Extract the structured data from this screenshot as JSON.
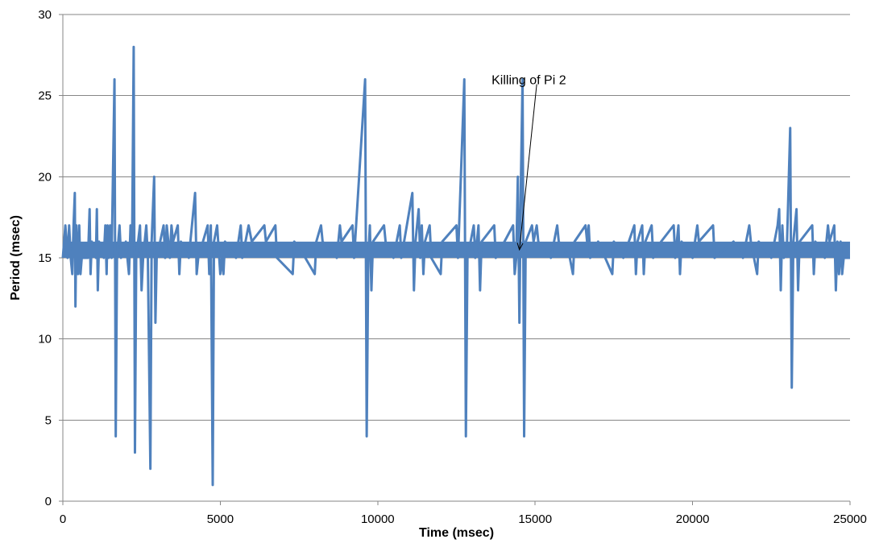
{
  "chart_data": {
    "type": "line",
    "xlabel": "Time (msec)",
    "ylabel": "Period (msec)",
    "xlim": [
      0,
      25000
    ],
    "ylim": [
      0,
      30
    ],
    "xticks": [
      0,
      5000,
      10000,
      15000,
      20000,
      25000
    ],
    "yticks": [
      0,
      5,
      10,
      15,
      20,
      25,
      30
    ],
    "grid": "horizontal",
    "legend": "none",
    "series_color": "#4f81bd",
    "baseline": [
      15,
      16
    ],
    "series": [
      {
        "points": [
          [
            0,
            15
          ],
          [
            80,
            17
          ],
          [
            150,
            15
          ],
          [
            200,
            17
          ],
          [
            250,
            15
          ],
          [
            300,
            14
          ],
          [
            340,
            17
          ],
          [
            380,
            19
          ],
          [
            400,
            12
          ],
          [
            430,
            17
          ],
          [
            480,
            14
          ],
          [
            520,
            17
          ],
          [
            560,
            14
          ],
          [
            600,
            15
          ],
          [
            800,
            15
          ],
          [
            850,
            18
          ],
          [
            880,
            14
          ],
          [
            920,
            16
          ],
          [
            1050,
            15
          ],
          [
            1080,
            18
          ],
          [
            1110,
            13
          ],
          [
            1150,
            16
          ],
          [
            1300,
            15
          ],
          [
            1350,
            17
          ],
          [
            1390,
            14
          ],
          [
            1420,
            17
          ],
          [
            1460,
            15
          ],
          [
            1500,
            17
          ],
          [
            1550,
            15
          ],
          [
            1640,
            26
          ],
          [
            1680,
            4
          ],
          [
            1720,
            15
          ],
          [
            1800,
            17
          ],
          [
            1850,
            15
          ],
          [
            2000,
            16
          ],
          [
            2100,
            14
          ],
          [
            2150,
            17
          ],
          [
            2200,
            16
          ],
          [
            2250,
            28
          ],
          [
            2290,
            3
          ],
          [
            2330,
            15
          ],
          [
            2450,
            17
          ],
          [
            2500,
            13
          ],
          [
            2550,
            15
          ],
          [
            2650,
            17
          ],
          [
            2700,
            15
          ],
          [
            2780,
            2
          ],
          [
            2820,
            16
          ],
          [
            2900,
            20
          ],
          [
            2940,
            11
          ],
          [
            2980,
            15
          ],
          [
            3200,
            17
          ],
          [
            3250,
            15
          ],
          [
            3300,
            17
          ],
          [
            3400,
            15
          ],
          [
            3450,
            17
          ],
          [
            3500,
            16
          ],
          [
            3650,
            17
          ],
          [
            3700,
            14
          ],
          [
            3750,
            16
          ],
          [
            4000,
            15
          ],
          [
            4200,
            19
          ],
          [
            4250,
            14
          ],
          [
            4300,
            15
          ],
          [
            4600,
            17
          ],
          [
            4650,
            14
          ],
          [
            4700,
            17
          ],
          [
            4760,
            1
          ],
          [
            4800,
            16
          ],
          [
            4900,
            17
          ],
          [
            5000,
            14
          ],
          [
            5050,
            15
          ],
          [
            5100,
            14
          ],
          [
            5150,
            16
          ],
          [
            5500,
            15
          ],
          [
            5650,
            17
          ],
          [
            5700,
            15
          ],
          [
            5900,
            17
          ],
          [
            6000,
            16
          ],
          [
            6400,
            17
          ],
          [
            6450,
            16
          ],
          [
            6750,
            17
          ],
          [
            6800,
            15
          ],
          [
            7300,
            14
          ],
          [
            7350,
            16
          ],
          [
            7700,
            15
          ],
          [
            8000,
            14
          ],
          [
            8050,
            16
          ],
          [
            8200,
            17
          ],
          [
            8250,
            16
          ],
          [
            8700,
            15
          ],
          [
            8800,
            17
          ],
          [
            8850,
            16
          ],
          [
            9200,
            17
          ],
          [
            9250,
            15
          ],
          [
            9600,
            26
          ],
          [
            9650,
            4
          ],
          [
            9700,
            15
          ],
          [
            9750,
            17
          ],
          [
            9800,
            13
          ],
          [
            9850,
            16
          ],
          [
            10200,
            17
          ],
          [
            10250,
            16
          ],
          [
            10500,
            15
          ],
          [
            10700,
            17
          ],
          [
            10750,
            15
          ],
          [
            11100,
            19
          ],
          [
            11150,
            13
          ],
          [
            11200,
            16
          ],
          [
            11300,
            18
          ],
          [
            11350,
            15
          ],
          [
            11400,
            17
          ],
          [
            11450,
            14
          ],
          [
            11500,
            16
          ],
          [
            11650,
            17
          ],
          [
            11700,
            15
          ],
          [
            12000,
            14
          ],
          [
            12050,
            16
          ],
          [
            12500,
            17
          ],
          [
            12550,
            15
          ],
          [
            12750,
            26
          ],
          [
            12800,
            4
          ],
          [
            12850,
            15
          ],
          [
            13050,
            17
          ],
          [
            13100,
            15
          ],
          [
            13200,
            17
          ],
          [
            13250,
            13
          ],
          [
            13300,
            16
          ],
          [
            13700,
            17
          ],
          [
            13750,
            15
          ],
          [
            14300,
            17
          ],
          [
            14350,
            14
          ],
          [
            14400,
            15
          ],
          [
            14450,
            20
          ],
          [
            14500,
            11
          ],
          [
            14550,
            20
          ],
          [
            14600,
            26
          ],
          [
            14650,
            4
          ],
          [
            14700,
            16
          ],
          [
            14900,
            17
          ],
          [
            14950,
            16
          ],
          [
            15050,
            17
          ],
          [
            15100,
            16
          ],
          [
            15500,
            15
          ],
          [
            15700,
            17
          ],
          [
            15750,
            16
          ],
          [
            16100,
            15
          ],
          [
            16200,
            14
          ],
          [
            16250,
            16
          ],
          [
            16600,
            17
          ],
          [
            16650,
            16
          ],
          [
            16700,
            17
          ],
          [
            16750,
            15
          ],
          [
            17000,
            16
          ],
          [
            17450,
            14
          ],
          [
            17500,
            16
          ],
          [
            17800,
            15
          ],
          [
            18150,
            17
          ],
          [
            18200,
            14
          ],
          [
            18250,
            16
          ],
          [
            18400,
            17
          ],
          [
            18450,
            14
          ],
          [
            18500,
            16
          ],
          [
            18700,
            17
          ],
          [
            18750,
            15
          ],
          [
            19000,
            16
          ],
          [
            19400,
            17
          ],
          [
            19450,
            15
          ],
          [
            19550,
            17
          ],
          [
            19600,
            14
          ],
          [
            19650,
            16
          ],
          [
            20000,
            15
          ],
          [
            20150,
            17
          ],
          [
            20200,
            16
          ],
          [
            20650,
            17
          ],
          [
            20700,
            15
          ],
          [
            21300,
            16
          ],
          [
            21600,
            15
          ],
          [
            21800,
            17
          ],
          [
            21850,
            16
          ],
          [
            22050,
            14
          ],
          [
            22100,
            16
          ],
          [
            22500,
            15
          ],
          [
            22700,
            17
          ],
          [
            22750,
            18
          ],
          [
            22800,
            13
          ],
          [
            22850,
            17
          ],
          [
            22900,
            15
          ],
          [
            23000,
            16
          ],
          [
            23100,
            23
          ],
          [
            23150,
            7
          ],
          [
            23200,
            16
          ],
          [
            23300,
            18
          ],
          [
            23350,
            13
          ],
          [
            23400,
            16
          ],
          [
            23800,
            17
          ],
          [
            23850,
            14
          ],
          [
            23900,
            16
          ],
          [
            24200,
            15
          ],
          [
            24300,
            17
          ],
          [
            24350,
            16
          ],
          [
            24500,
            17
          ],
          [
            24550,
            13
          ],
          [
            24600,
            16
          ],
          [
            24650,
            14
          ],
          [
            24700,
            16
          ],
          [
            24750,
            14
          ],
          [
            24800,
            15
          ],
          [
            25000,
            15
          ]
        ]
      }
    ],
    "annotation": {
      "text": "Killing of Pi 2",
      "text_at": [
        14800,
        26
      ],
      "arrow_from": [
        15050,
        25.7
      ],
      "arrow_to": [
        14500,
        15.5
      ]
    }
  }
}
